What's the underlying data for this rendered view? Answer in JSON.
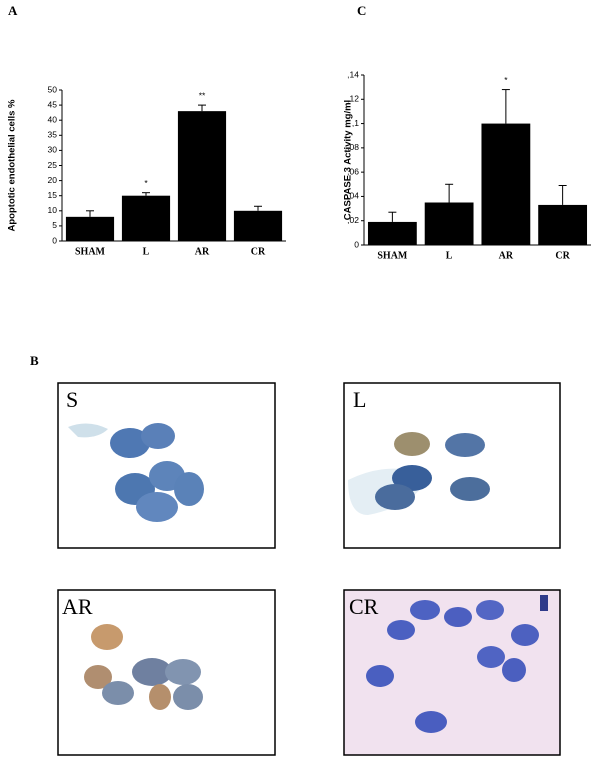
{
  "chart_data": [
    {
      "type": "bar",
      "panel_label": "A",
      "ylabel": "Apoptotic endothelial cells %",
      "categories": [
        "SHAM",
        "L",
        "AR",
        "CR"
      ],
      "values": [
        8,
        15,
        43,
        10
      ],
      "errors": [
        2,
        1,
        2,
        1.5
      ],
      "annotations": [
        null,
        "*",
        "**",
        null
      ],
      "color": "#000000",
      "ylim": [
        0,
        50
      ],
      "yticks": [
        0,
        5,
        10,
        15,
        20,
        25,
        30,
        35,
        40,
        45,
        50
      ]
    },
    {
      "type": "bar",
      "panel_label": "C",
      "ylabel": "CASPASE 3 Activity mg/ml",
      "categories": [
        "SHAM",
        "L",
        "AR",
        "CR"
      ],
      "values": [
        0.019,
        0.035,
        0.1,
        0.033
      ],
      "errors": [
        0.008,
        0.015,
        0.028,
        0.016
      ],
      "annotations": [
        null,
        null,
        "*",
        null
      ],
      "color": "#000000",
      "ylim": [
        0,
        0.14
      ],
      "yticks": [
        0,
        {
          "value": 0.02,
          "label": ",02"
        },
        {
          "value": 0.04,
          "label": ",04"
        },
        {
          "value": 0.06,
          "label": ",06"
        },
        {
          "value": 0.08,
          "label": ",08"
        },
        {
          "value": 0.1,
          "label": ",1"
        },
        {
          "value": 0.12,
          "label": ",12"
        },
        {
          "value": 0.14,
          "label": ",14"
        }
      ]
    }
  ],
  "micrographs": {
    "panel_label": "B",
    "labels": [
      "S",
      "L",
      "AR",
      "CR"
    ]
  }
}
